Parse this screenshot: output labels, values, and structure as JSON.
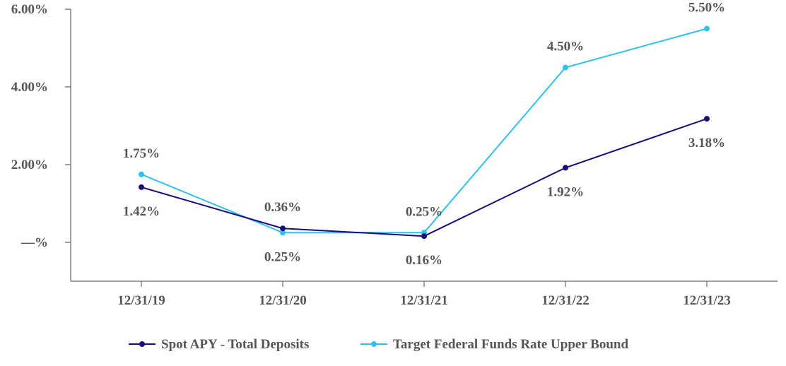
{
  "chart_data": {
    "type": "line",
    "title": "",
    "xlabel": "",
    "ylabel": "",
    "categories": [
      "12/31/19",
      "12/31/20",
      "12/31/21",
      "12/31/22",
      "12/31/23"
    ],
    "y_ticks": [
      {
        "value": 6,
        "label": "6.00%"
      },
      {
        "value": 4,
        "label": "4.00%"
      },
      {
        "value": 2,
        "label": "2.00%"
      },
      {
        "value": 0,
        "label": "—%"
      }
    ],
    "ylim": [
      -1,
      6
    ],
    "grid": false,
    "legend_position": "bottom",
    "series": [
      {
        "name": "Spot APY - Total Deposits",
        "color": "#1b0b78",
        "values": [
          1.42,
          0.36,
          0.16,
          1.92,
          3.18
        ],
        "labels": [
          "1.42%",
          "0.36%",
          "0.16%",
          "1.92%",
          "3.18%"
        ],
        "label_side": [
          "below",
          "above",
          "below",
          "below",
          "below"
        ]
      },
      {
        "name": "Target Federal Funds Rate Upper Bound",
        "color": "#2ec0ef",
        "values": [
          1.75,
          0.25,
          0.25,
          4.5,
          5.5
        ],
        "labels": [
          "1.75%",
          "0.25%",
          "0.25%",
          "4.50%",
          "5.50%"
        ],
        "label_side": [
          "above",
          "below",
          "above",
          "above",
          "above"
        ]
      }
    ]
  }
}
